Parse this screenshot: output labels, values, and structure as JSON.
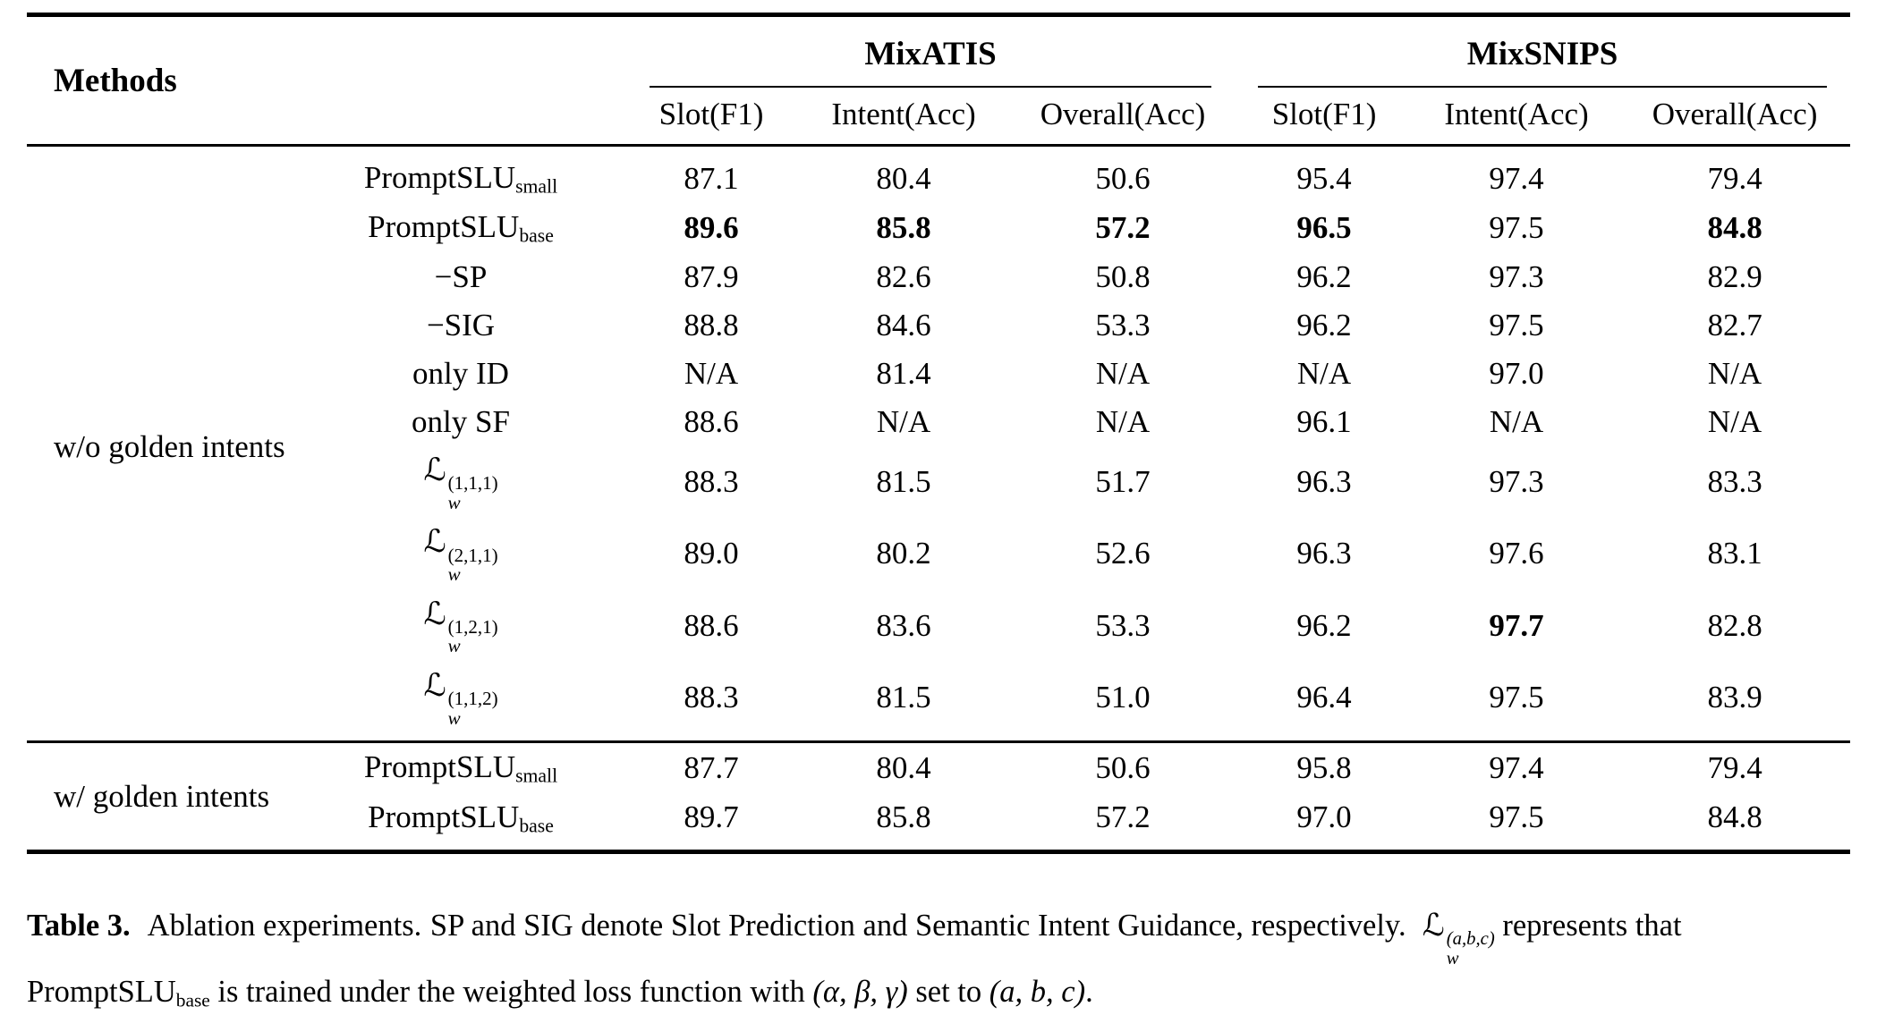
{
  "table": {
    "corner_header": "Methods",
    "groups": [
      {
        "label": "MixATIS",
        "columns": [
          "Slot(F1)",
          "Intent(Acc)",
          "Overall(Acc)"
        ]
      },
      {
        "label": "MixSNIPS",
        "columns": [
          "Slot(F1)",
          "Intent(Acc)",
          "Overall(Acc)"
        ]
      }
    ],
    "sections": [
      {
        "label": "w/o golden intents",
        "rows": [
          {
            "method": {
              "main": "PromptSLU",
              "sub": "small"
            },
            "values": [
              "87.1",
              "80.4",
              "50.6",
              "95.4",
              "97.4",
              "79.4"
            ],
            "bold": []
          },
          {
            "method": {
              "main": "PromptSLU",
              "sub": "base"
            },
            "values": [
              "89.6",
              "85.8",
              "57.2",
              "96.5",
              "97.5",
              "84.8"
            ],
            "bold": [
              0,
              1,
              2,
              3,
              5
            ]
          },
          {
            "method": {
              "main": "−SP"
            },
            "values": [
              "87.9",
              "82.6",
              "50.8",
              "96.2",
              "97.3",
              "82.9"
            ],
            "bold": []
          },
          {
            "method": {
              "main": "−SIG"
            },
            "values": [
              "88.8",
              "84.6",
              "53.3",
              "96.2",
              "97.5",
              "82.7"
            ],
            "bold": []
          },
          {
            "method": {
              "main": "only ID"
            },
            "values": [
              "N/A",
              "81.4",
              "N/A",
              "N/A",
              "97.0",
              "N/A"
            ],
            "bold": []
          },
          {
            "method": {
              "main": "only SF"
            },
            "values": [
              "88.6",
              "N/A",
              "N/A",
              "96.1",
              "N/A",
              "N/A"
            ],
            "bold": []
          },
          {
            "method": {
              "main": "ℒ",
              "stacked": true,
              "sup": "(1,1,1)",
              "sub": "w"
            },
            "values": [
              "88.3",
              "81.5",
              "51.7",
              "96.3",
              "97.3",
              "83.3"
            ],
            "bold": []
          },
          {
            "method": {
              "main": "ℒ",
              "stacked": true,
              "sup": "(2,1,1)",
              "sub": "w"
            },
            "values": [
              "89.0",
              "80.2",
              "52.6",
              "96.3",
              "97.6",
              "83.1"
            ],
            "bold": []
          },
          {
            "method": {
              "main": "ℒ",
              "stacked": true,
              "sup": "(1,2,1)",
              "sub": "w"
            },
            "values": [
              "88.6",
              "83.6",
              "53.3",
              "96.2",
              "97.7",
              "82.8"
            ],
            "bold": [
              4
            ]
          },
          {
            "method": {
              "main": "ℒ",
              "stacked": true,
              "sup": "(1,1,2)",
              "sub": "w"
            },
            "values": [
              "88.3",
              "81.5",
              "51.0",
              "96.4",
              "97.5",
              "83.9"
            ],
            "bold": []
          }
        ]
      },
      {
        "label": "w/ golden intents",
        "rows": [
          {
            "method": {
              "main": "PromptSLU",
              "sub": "small"
            },
            "values": [
              "87.7",
              "80.4",
              "50.6",
              "95.8",
              "97.4",
              "79.4"
            ],
            "bold": []
          },
          {
            "method": {
              "main": "PromptSLU",
              "sub": "base"
            },
            "values": [
              "89.7",
              "85.8",
              "57.2",
              "97.0",
              "97.5",
              "84.8"
            ],
            "bold": []
          }
        ]
      }
    ]
  },
  "caption": {
    "label": "Table 3.",
    "text1": "Ablation experiments.",
    "text2": "SP and SIG denote Slot Prediction and Semantic Intent Guidance, respectively.",
    "loss_main": "ℒ",
    "loss_sup": "(a,b,c)",
    "loss_sub": "w",
    "text3": "represents that PromptSLU",
    "text3_sub": "base",
    "text4": " is trained under the weighted loss function with ",
    "math_greek": "(α, β, γ)",
    "text5": " set to ",
    "math_latin": "(a, b, c)",
    "text6": "."
  }
}
